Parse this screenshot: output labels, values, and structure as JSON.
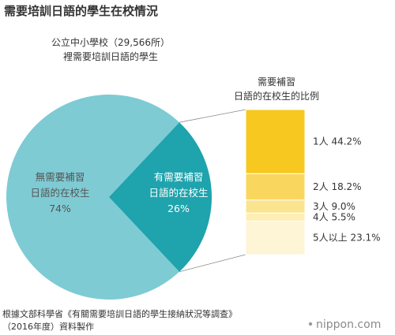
{
  "title": "需要培訓日語的學生在校情況",
  "source_line1": "根據文部科學省《有關需要培訓日語的學生接納狀況等調查》",
  "source_line2": "（2016年度）資料製作",
  "brand": "nippon.com",
  "chart_data": [
    {
      "type": "pie",
      "title_line1": "公立中小學校（29,566所）",
      "title_line2": "裡需要培訓日語的學生",
      "slices": [
        {
          "label_line1": "無需要補習",
          "label_line2": "日語的在校生",
          "value": 74,
          "value_label": "74%",
          "color": "#7ecbd4"
        },
        {
          "label_line1": "有需要補習",
          "label_line2": "日語的在校生",
          "value": 26,
          "value_label": "26%",
          "color": "#1fa3ad"
        }
      ]
    },
    {
      "type": "bar",
      "orientation": "stacked-vertical",
      "title_line1": "需要補習",
      "title_line2": "日語的在校生的比例",
      "categories": [
        "1人",
        "2人",
        "3人",
        "4人",
        "5人以上"
      ],
      "values": [
        44.2,
        18.2,
        9.0,
        5.5,
        23.1
      ],
      "value_labels": [
        "44.2%",
        "18.2%",
        "9.0%",
        "5.5%",
        "23.1%"
      ],
      "colors": [
        "#f7c81f",
        "#f9d75e",
        "#fbe48f",
        "#fdeeb6",
        "#fef4d6"
      ]
    }
  ]
}
